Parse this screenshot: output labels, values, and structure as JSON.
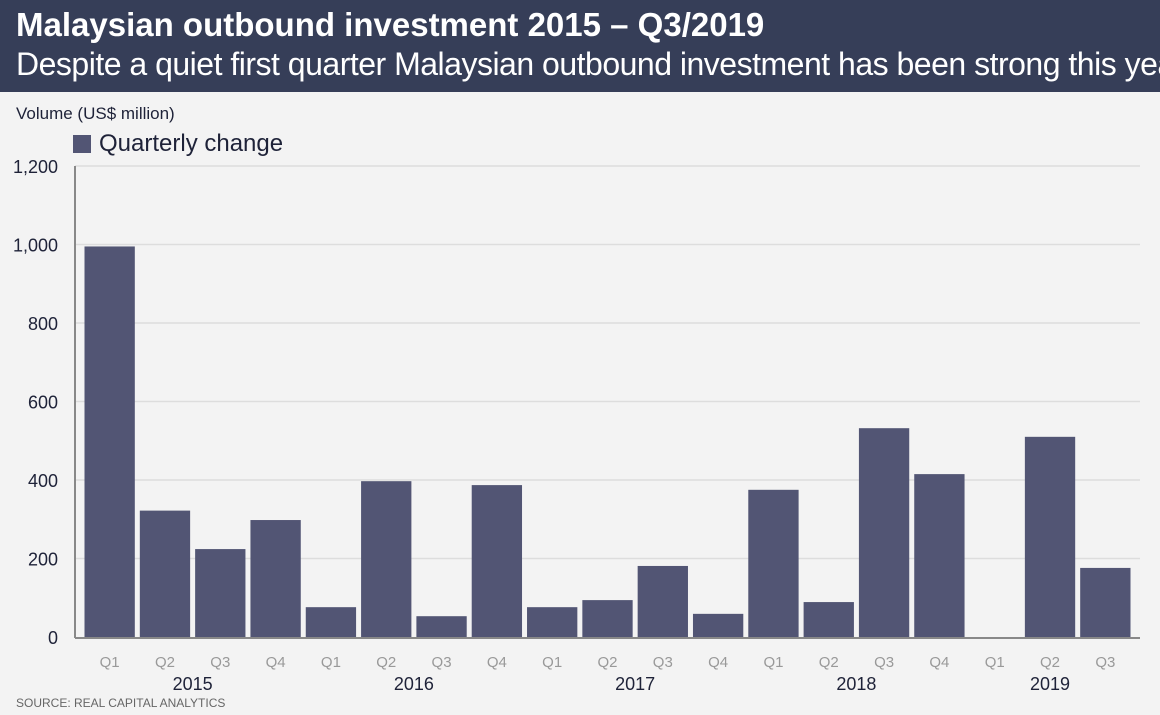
{
  "header": {
    "title": "Malaysian outbound investment 2015 – Q3/2019",
    "subtitle": "Despite a quiet first quarter Malaysian outbound investment has been strong this year"
  },
  "source": "SOURCE: REAL CAPITAL ANALYTICS",
  "colors": {
    "header": "#363e58",
    "bar": "#525574",
    "grid": "#dddddd"
  },
  "chart_data": {
    "type": "bar",
    "title": "Malaysian outbound investment 2015 – Q3/2019",
    "ylabel": "Volume (US$ million)",
    "xlabel": "",
    "ylim": [
      0,
      1200
    ],
    "yticks": [
      0,
      200,
      400,
      600,
      800,
      1000,
      1200
    ],
    "ytick_labels": [
      "0",
      "200",
      "400",
      "600",
      "800",
      "1,000",
      "1,200"
    ],
    "grid": true,
    "legend": {
      "position": "top-left",
      "entries": [
        "Quarterly change"
      ]
    },
    "categories": [
      "Q1",
      "Q2",
      "Q3",
      "Q4",
      "Q1",
      "Q2",
      "Q3",
      "Q4",
      "Q1",
      "Q2",
      "Q3",
      "Q4",
      "Q1",
      "Q2",
      "Q3",
      "Q4",
      "Q1",
      "Q2",
      "Q3"
    ],
    "groups": [
      {
        "label": "2015",
        "count": 4
      },
      {
        "label": "2016",
        "count": 4
      },
      {
        "label": "2017",
        "count": 4
      },
      {
        "label": "2018",
        "count": 4
      },
      {
        "label": "2019",
        "count": 3
      }
    ],
    "series": [
      {
        "name": "Quarterly change",
        "values": [
          995,
          322,
          224,
          298,
          76,
          397,
          53,
          387,
          76,
          94,
          181,
          59,
          375,
          89,
          532,
          415,
          0,
          510,
          176
        ]
      }
    ]
  }
}
